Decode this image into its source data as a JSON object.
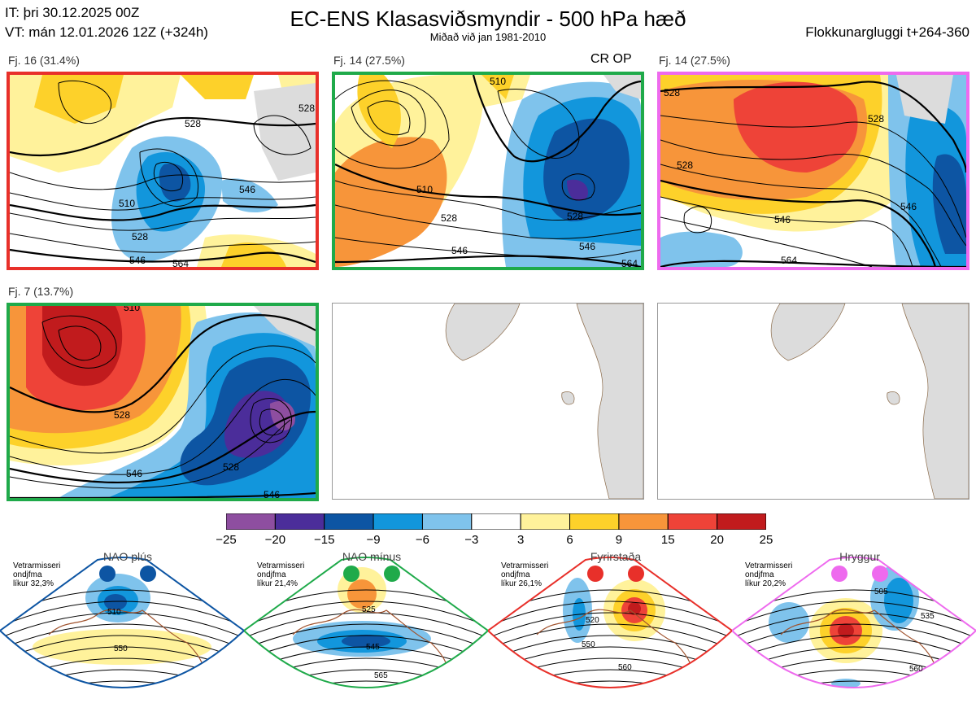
{
  "header": {
    "it": "IT: þri 30.12.2025 00Z",
    "vt": "VT: mán 12.01.2026 12Z  (+324h)",
    "title": "EC-ENS Klasasviðsmyndir - 500 hPa hæð",
    "subtitle": "Miðað við jan 1981-2010",
    "window": "Flokkunargluggi t+264-360"
  },
  "panels": [
    {
      "label": "Fj. 16 (31.4%)",
      "border": "#e8302a",
      "tag": ""
    },
    {
      "label": "Fj. 14 (27.5%)",
      "border": "#1faa4a",
      "tag": "CR OP"
    },
    {
      "label": "Fj. 14 (27.5%)",
      "border": "#ee6aee",
      "tag": ""
    },
    {
      "label": "Fj. 7 (13.7%)",
      "border": "#1faa4a",
      "tag": ""
    }
  ],
  "contour_labels": {
    "p1": [
      "510",
      "528",
      "546",
      "528",
      "546",
      "528",
      "564"
    ],
    "p2": [
      "510",
      "510",
      "528",
      "546",
      "528",
      "546",
      "564"
    ],
    "p3": [
      "528",
      "528",
      "528",
      "546",
      "546",
      "564"
    ],
    "p4": [
      "510",
      "528",
      "546",
      "528",
      "546"
    ]
  },
  "colorbar": {
    "colors": [
      "#8e4ea0",
      "#4b2d9a",
      "#0d55a3",
      "#1296dc",
      "#7fc3ec",
      "#ffffff",
      "#fff29b",
      "#fdd12a",
      "#f7953a",
      "#ee4338",
      "#c11b1d"
    ],
    "ticks": [
      "−25",
      "−20",
      "−15",
      "−9",
      "−6",
      "−3",
      "3",
      "6",
      "9",
      "15",
      "20",
      "25"
    ]
  },
  "regimes": [
    {
      "title": "NAO plús",
      "l1": "Vetrarmisseri",
      "l2": "ondjfma",
      "l3": "líkur 32,3%",
      "color": "#0d55a3",
      "labels": [
        "510",
        "550"
      ]
    },
    {
      "title": "NAO mínus",
      "l1": "Vetrarmisseri",
      "l2": "ondjfma",
      "l3": "líkur 21,4%",
      "color": "#1faa4a",
      "labels": [
        "525",
        "545",
        "565"
      ]
    },
    {
      "title": "Fyrirstaða",
      "l1": "Vetrarmisseri",
      "l2": "ondjfma",
      "l3": "líkur 26,1%",
      "color": "#e8302a",
      "labels": [
        "520",
        "550",
        "560"
      ]
    },
    {
      "title": "Hryggur",
      "l1": "Vetrarmisseri",
      "l2": "ondjfma",
      "l3": "líkur 20,2%",
      "color": "#ee6aee",
      "labels": [
        "505",
        "535",
        "560"
      ]
    }
  ]
}
